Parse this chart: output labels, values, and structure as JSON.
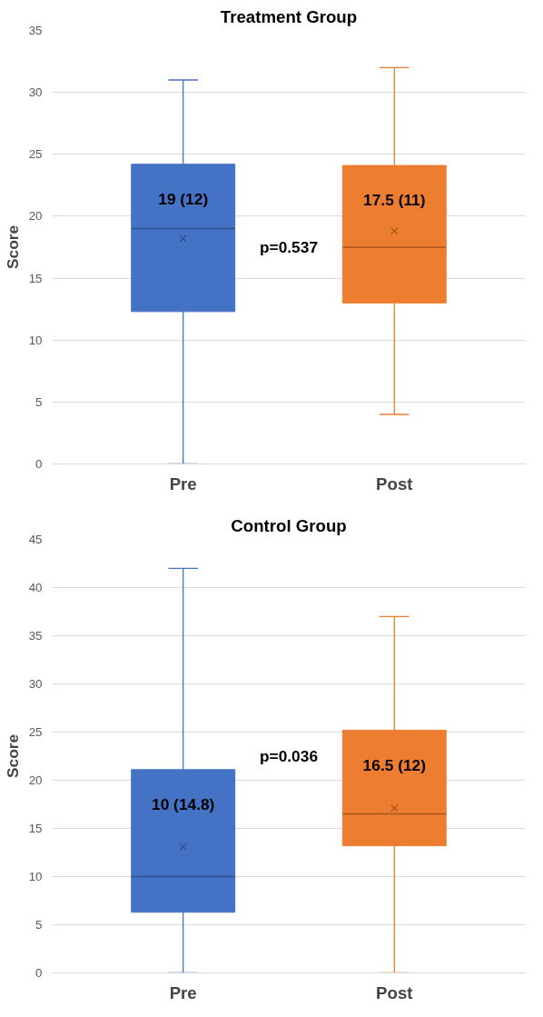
{
  "chart_data": [
    {
      "type": "box",
      "title": "Treatment Group",
      "ylabel": "Score",
      "categories": [
        "Pre",
        "Post"
      ],
      "colors": [
        "#4472c4",
        "#ed7d31"
      ],
      "boxes": [
        {
          "low": 0,
          "q1": 12.3,
          "median": 19,
          "q3": 24.2,
          "high": 31,
          "mean": 18.2
        },
        {
          "low": 4,
          "q1": 13,
          "median": 17.5,
          "q3": 24.1,
          "high": 32,
          "mean": 18.8
        }
      ],
      "ylim": [
        0,
        35
      ],
      "yticks": [
        0,
        5,
        10,
        15,
        20,
        25,
        30,
        35
      ],
      "grid": "y",
      "annotations": [
        "19 (12)",
        "17.5 (11)",
        "p=0.537"
      ]
    },
    {
      "type": "box",
      "title": "Control Group",
      "ylabel": "Score",
      "categories": [
        "Pre",
        "Post"
      ],
      "colors": [
        "#4472c4",
        "#ed7d31"
      ],
      "boxes": [
        {
          "low": 0,
          "q1": 6.3,
          "median": 10,
          "q3": 21.1,
          "high": 42,
          "mean": 13.1
        },
        {
          "low": 0,
          "q1": 13.2,
          "median": 16.5,
          "q3": 25.2,
          "high": 37,
          "mean": 17.1
        }
      ],
      "ylim": [
        0,
        45
      ],
      "yticks": [
        0,
        5,
        10,
        15,
        20,
        25,
        30,
        35,
        40,
        45
      ],
      "grid": "y",
      "annotations": [
        "10 (14.8)",
        "16.5 (12)",
        "p=0.036"
      ]
    }
  ]
}
